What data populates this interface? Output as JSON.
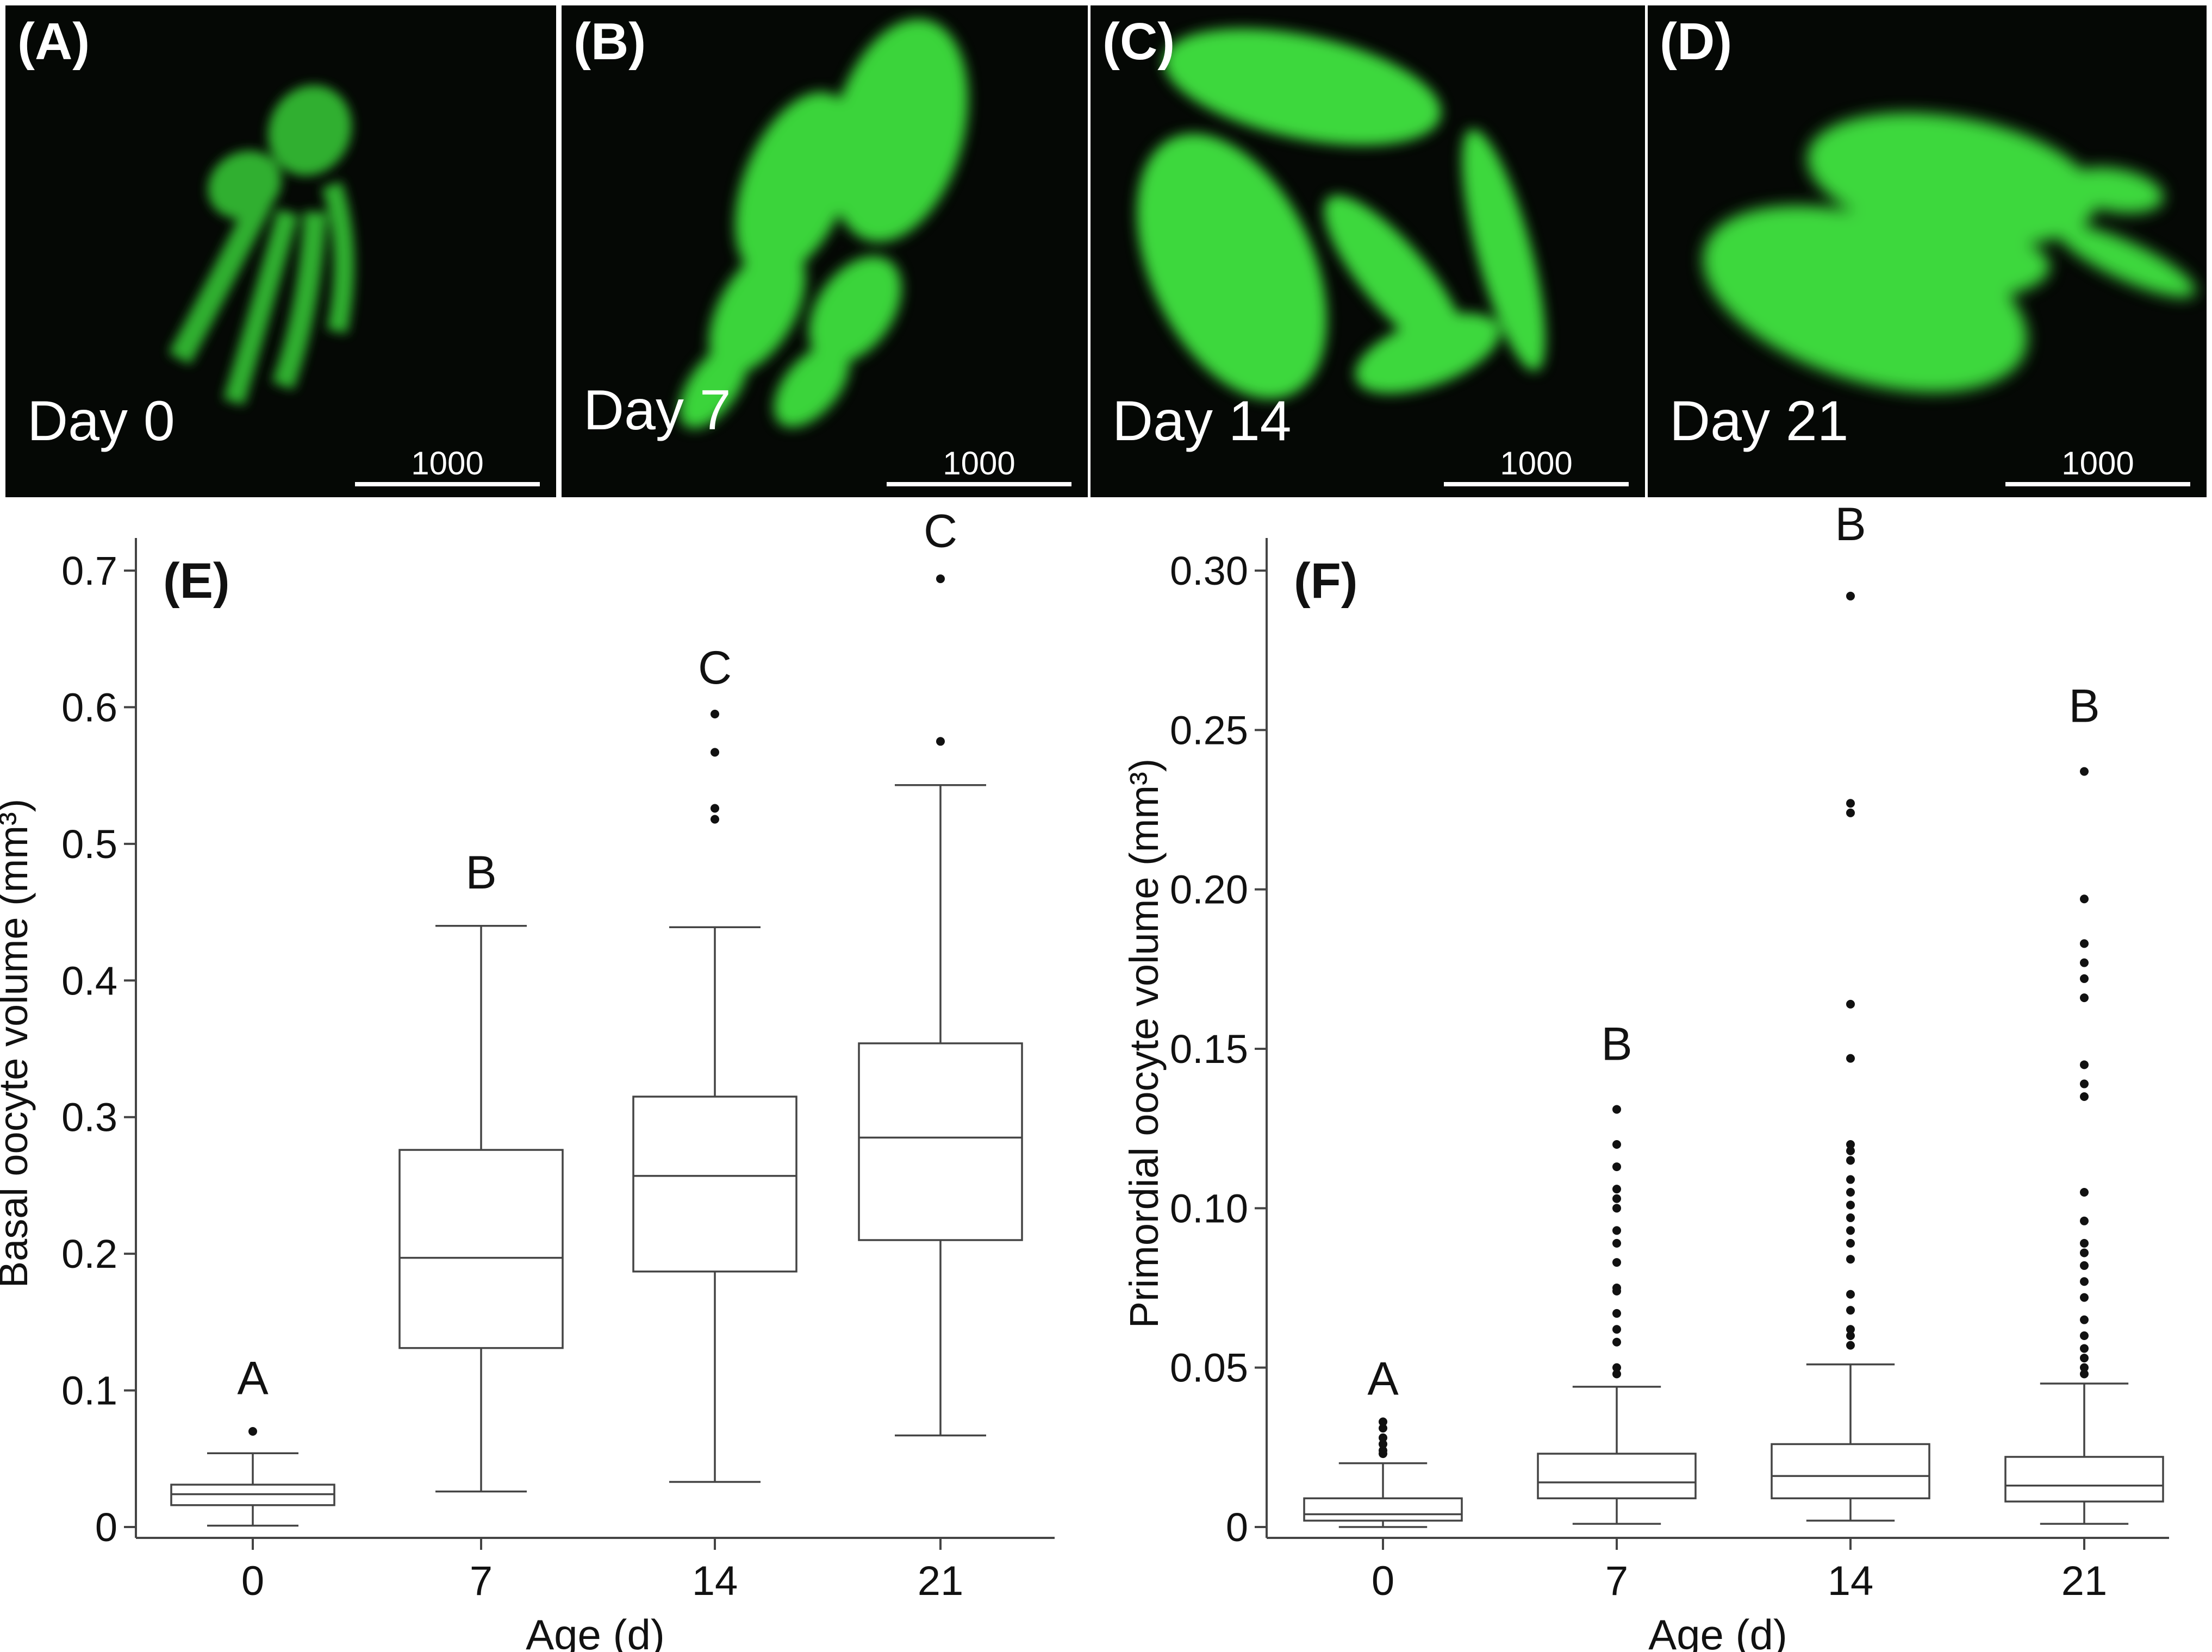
{
  "panels": [
    {
      "label": "(A)",
      "day": "Day 0",
      "scale": "1000"
    },
    {
      "label": "(B)",
      "day": "Day 7",
      "scale": "1000"
    },
    {
      "label": "(C)",
      "day": "Day 14",
      "scale": "1000"
    },
    {
      "label": "(D)",
      "day": "Day 21",
      "scale": "1000"
    }
  ],
  "colors": {
    "fluorescence": "#3fd43f",
    "background": "#050805",
    "box": "#444444"
  },
  "chart_data": [
    {
      "panel": "(E)",
      "type": "box",
      "xlabel": "Age (d)",
      "ylabel": "Basal oocyte volume (mm³)",
      "categories": [
        "0",
        "7",
        "14",
        "21"
      ],
      "ylim": [
        0,
        0.7
      ],
      "yticks": [
        0,
        0.1,
        0.2,
        0.3,
        0.4,
        0.5,
        0.6,
        0.7
      ],
      "ytick_labels": [
        "0",
        "0.1",
        "0.2",
        "0.3",
        "0.4",
        "0.5",
        "0.6",
        "0.7"
      ],
      "grid": false,
      "boxes": [
        {
          "min": 0.001,
          "q1": 0.016,
          "median": 0.024,
          "q3": 0.031,
          "max": 0.054,
          "outliers": [
            0.07
          ]
        },
        {
          "min": 0.026,
          "q1": 0.131,
          "median": 0.197,
          "q3": 0.276,
          "max": 0.44,
          "outliers": []
        },
        {
          "min": 0.033,
          "q1": 0.187,
          "median": 0.257,
          "q3": 0.315,
          "max": 0.439,
          "outliers": [
            0.518,
            0.526,
            0.567,
            0.595
          ]
        },
        {
          "min": 0.067,
          "q1": 0.21,
          "median": 0.285,
          "q3": 0.354,
          "max": 0.543,
          "outliers": [
            0.575,
            0.694
          ]
        }
      ],
      "letters": [
        "A",
        "B",
        "C",
        "C"
      ],
      "letter_values": [
        0.11,
        0.48,
        0.63,
        0.73
      ]
    },
    {
      "panel": "(F)",
      "type": "box",
      "xlabel": "Age (d)",
      "ylabel": "Primordial oocyte volume (mm³)",
      "categories": [
        "0",
        "7",
        "14",
        "21"
      ],
      "ylim": [
        0,
        0.3
      ],
      "yticks": [
        0,
        0.05,
        0.1,
        0.15,
        0.2,
        0.25,
        0.3
      ],
      "ytick_labels": [
        "0",
        "0.05",
        "0.10",
        "0.15",
        "0.20",
        "0.25",
        "0.30"
      ],
      "grid": false,
      "boxes": [
        {
          "min": 0.0,
          "q1": 0.002,
          "median": 0.004,
          "q3": 0.009,
          "max": 0.02,
          "outliers": [
            0.023,
            0.024,
            0.026,
            0.028,
            0.031,
            0.033
          ]
        },
        {
          "min": 0.001,
          "q1": 0.009,
          "median": 0.014,
          "q3": 0.023,
          "max": 0.044,
          "outliers": [
            0.048,
            0.05,
            0.058,
            0.062,
            0.067,
            0.074,
            0.075,
            0.083,
            0.089,
            0.093,
            0.1,
            0.103,
            0.106,
            0.113,
            0.12,
            0.131
          ]
        },
        {
          "min": 0.002,
          "q1": 0.009,
          "median": 0.016,
          "q3": 0.026,
          "max": 0.051,
          "outliers": [
            0.057,
            0.06,
            0.062,
            0.068,
            0.073,
            0.084,
            0.089,
            0.093,
            0.097,
            0.101,
            0.105,
            0.109,
            0.115,
            0.118,
            0.12,
            0.147,
            0.164,
            0.224,
            0.227,
            0.292
          ]
        },
        {
          "min": 0.001,
          "q1": 0.008,
          "median": 0.013,
          "q3": 0.022,
          "max": 0.045,
          "outliers": [
            0.048,
            0.05,
            0.053,
            0.056,
            0.06,
            0.065,
            0.072,
            0.077,
            0.082,
            0.086,
            0.089,
            0.096,
            0.105,
            0.135,
            0.139,
            0.145,
            0.166,
            0.172,
            0.177,
            0.183,
            0.197,
            0.237
          ]
        }
      ],
      "letters": [
        "A",
        "B",
        "B",
        "B"
      ],
      "letter_values": [
        0.047,
        0.152,
        0.315,
        0.258
      ]
    }
  ]
}
